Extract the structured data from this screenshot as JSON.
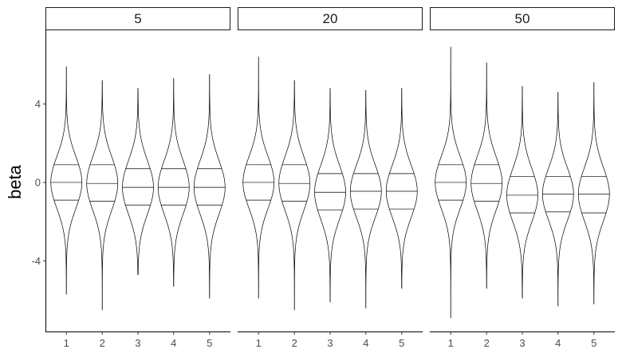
{
  "chart_data": {
    "type": "violin",
    "facet_variable_values": [
      "5",
      "20",
      "50"
    ],
    "ylabel": "beta",
    "xlabel": "",
    "ylim": [
      -7.6,
      7.8
    ],
    "y_ticks": [
      -4,
      0,
      4
    ],
    "quantiles_drawn": [
      0.25,
      0.5,
      0.75
    ],
    "categories": [
      "1",
      "2",
      "3",
      "4",
      "5"
    ],
    "facets": [
      {
        "label": "5",
        "violins": [
          {
            "category": "1",
            "min": -5.7,
            "max": 5.9,
            "q1": -0.9,
            "median": 0.0,
            "q3": 0.9
          },
          {
            "category": "2",
            "min": -6.5,
            "max": 5.2,
            "q1": -0.95,
            "median": -0.05,
            "q3": 0.9
          },
          {
            "category": "3",
            "min": -4.7,
            "max": 4.8,
            "q1": -1.15,
            "median": -0.25,
            "q3": 0.7
          },
          {
            "category": "4",
            "min": -5.3,
            "max": 5.3,
            "q1": -1.15,
            "median": -0.25,
            "q3": 0.7
          },
          {
            "category": "5",
            "min": -5.9,
            "max": 5.5,
            "q1": -1.15,
            "median": -0.25,
            "q3": 0.7
          }
        ]
      },
      {
        "label": "20",
        "violins": [
          {
            "category": "1",
            "min": -5.9,
            "max": 6.4,
            "q1": -0.9,
            "median": 0.0,
            "q3": 0.9
          },
          {
            "category": "2",
            "min": -6.5,
            "max": 5.2,
            "q1": -0.95,
            "median": -0.05,
            "q3": 0.9
          },
          {
            "category": "3",
            "min": -6.1,
            "max": 4.8,
            "q1": -1.4,
            "median": -0.5,
            "q3": 0.45
          },
          {
            "category": "4",
            "min": -6.4,
            "max": 4.7,
            "q1": -1.35,
            "median": -0.45,
            "q3": 0.45
          },
          {
            "category": "5",
            "min": -5.4,
            "max": 4.8,
            "q1": -1.35,
            "median": -0.45,
            "q3": 0.45
          }
        ]
      },
      {
        "label": "50",
        "violins": [
          {
            "category": "1",
            "min": -6.9,
            "max": 6.9,
            "q1": -0.9,
            "median": 0.0,
            "q3": 0.9
          },
          {
            "category": "2",
            "min": -5.4,
            "max": 6.1,
            "q1": -0.95,
            "median": -0.05,
            "q3": 0.9
          },
          {
            "category": "3",
            "min": -5.9,
            "max": 4.9,
            "q1": -1.55,
            "median": -0.65,
            "q3": 0.3
          },
          {
            "category": "4",
            "min": -6.3,
            "max": 4.6,
            "q1": -1.5,
            "median": -0.6,
            "q3": 0.3
          },
          {
            "category": "5",
            "min": -6.2,
            "max": 5.1,
            "q1": -1.55,
            "median": -0.6,
            "q3": 0.3
          }
        ]
      }
    ]
  }
}
